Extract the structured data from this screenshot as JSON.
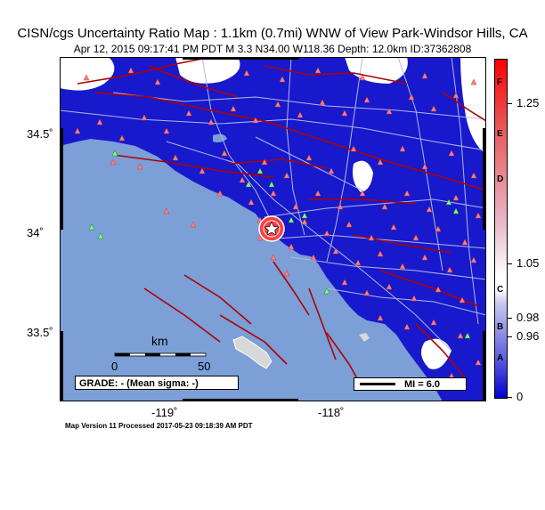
{
  "title": "CISN/cgs Uncertainty Ratio Map : 1.1km (0.7mi) WNW of View Park-Windsor Hills, CA",
  "subtitle": "Apr 12, 2015 09:17:41 PM PDT   M 3.3   N34.00 W118.36   Depth: 12.0km   ID:37362808",
  "lat_labels": [
    "34.5˚",
    "34˚",
    "33.5˚"
  ],
  "lon_labels": [
    "-119˚",
    "-118˚"
  ],
  "scale": {
    "title": "km",
    "left": "0",
    "right": "50"
  },
  "grade_text": "GRADE: - (Mean sigma: -)",
  "mi_text": "MI = 6.0",
  "footer": "Map Version 11 Processed 2017-05-23 09:18:39 AM PDT",
  "colorbar": {
    "letters": [
      "F",
      "E",
      "D",
      "C",
      "B",
      "A"
    ],
    "values": [
      "1.25",
      "1.05",
      "0.98",
      "0.96",
      "0"
    ]
  },
  "colors": {
    "ocean": "#7b9fd6",
    "uncertainty_low": "#1818cc",
    "uncertainty_high": "#ff0000",
    "land_gap": "#ffffff",
    "fault": "#b00000",
    "road": "#b0b8e8",
    "station_seismic": "#ff8080",
    "station_strong": "#80ff80"
  }
}
